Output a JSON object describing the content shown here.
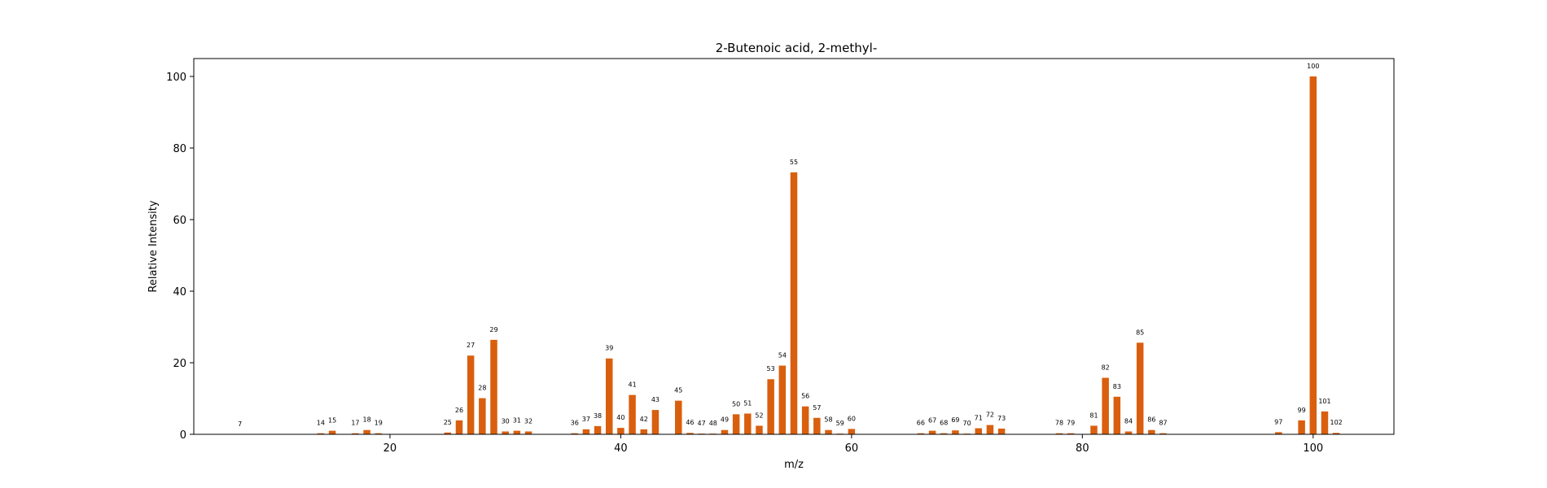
{
  "chart_data": {
    "type": "bar",
    "title": "2-Butenoic acid, 2-methyl-",
    "xlabel": "m/z",
    "ylabel": "Relative Intensity",
    "xlim": [
      3,
      107
    ],
    "ylim": [
      0,
      105
    ],
    "xticks": [
      20,
      40,
      60,
      80,
      100
    ],
    "yticks": [
      0,
      20,
      40,
      60,
      80,
      100
    ],
    "grid": false,
    "bar_color": "#d95f0e",
    "x": [
      7,
      14,
      15,
      17,
      18,
      19,
      25,
      26,
      27,
      28,
      29,
      30,
      31,
      32,
      36,
      37,
      38,
      39,
      40,
      41,
      42,
      43,
      45,
      46,
      47,
      48,
      49,
      50,
      51,
      52,
      53,
      54,
      55,
      56,
      57,
      58,
      59,
      60,
      66,
      67,
      68,
      69,
      70,
      71,
      72,
      73,
      78,
      79,
      81,
      82,
      83,
      84,
      85,
      86,
      87,
      97,
      99,
      100,
      101,
      102
    ],
    "values": [
      0.05,
      0.3,
      1.0,
      0.3,
      1.2,
      0.3,
      0.5,
      3.9,
      22.0,
      10.1,
      26.4,
      0.8,
      1.0,
      0.8,
      0.3,
      1.4,
      2.3,
      21.2,
      1.8,
      11.0,
      1.4,
      6.8,
      9.4,
      0.4,
      0.2,
      0.2,
      1.2,
      5.6,
      5.8,
      2.4,
      15.4,
      19.2,
      73.2,
      7.8,
      4.6,
      1.2,
      0.2,
      1.5,
      0.3,
      1.0,
      0.3,
      1.1,
      0.2,
      1.7,
      2.6,
      1.6,
      0.3,
      0.3,
      2.4,
      15.8,
      10.5,
      0.8,
      25.6,
      1.2,
      0.3,
      0.6,
      3.9,
      100.0,
      6.4,
      0.4
    ]
  }
}
